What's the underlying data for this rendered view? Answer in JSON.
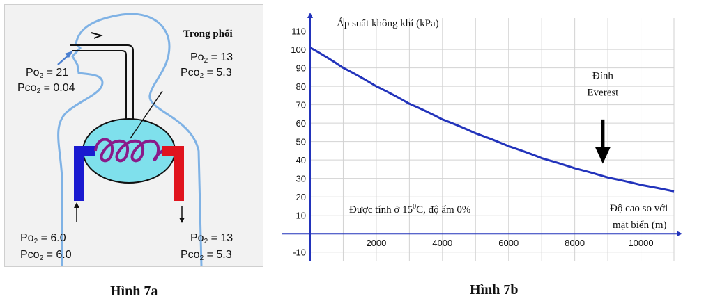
{
  "figure_a": {
    "caption": "Hình 7a",
    "lung_title": "Trong phổi",
    "air": {
      "po2_label": "Po",
      "po2_value": "21",
      "pco2_label": "Pco",
      "pco2_value": "0.04"
    },
    "lung": {
      "po2_label": "Po",
      "po2_value": "13",
      "pco2_label": "Pco",
      "pco2_value": "5.3"
    },
    "venous": {
      "po2_label": "Po",
      "po2_value": "6.0",
      "pco2_label": "Pco",
      "pco2_value": "6.0"
    },
    "arterial": {
      "po2_label": "Po",
      "po2_value": "13",
      "pco2_label": "Pco",
      "pco2_value": "5.3"
    },
    "subscript": "2",
    "colors": {
      "outline": "#7fb2e5",
      "lung": "#7fe0ec",
      "capillary": "#8a1a8a",
      "venous": "#1a1ad0",
      "arterial": "#e0141e"
    }
  },
  "figure_b": {
    "caption": "Hình 7b",
    "annotation_top": "Đỉnh",
    "annotation_bottom": "Everest",
    "note_prefix": "Được tính ở 15",
    "note_sup": "0",
    "note_suffix": "C, độ ẩm 0%",
    "xlabel_line1": "Độ cao so với",
    "xlabel_line2": "mặt biển (m)"
  },
  "chart_data": {
    "type": "line",
    "ylabel": "Áp suất không khí (kPa)",
    "xlabel": "Độ cao so với mặt biển (m)",
    "xlim": [
      0,
      11000
    ],
    "ylim": [
      -15,
      117
    ],
    "x_ticks": [
      2000,
      4000,
      6000,
      8000,
      10000
    ],
    "y_ticks": [
      110,
      100,
      90,
      80,
      70,
      60,
      50,
      40,
      30,
      20,
      10,
      -10
    ],
    "grid": true,
    "series": [
      {
        "x": [
          0,
          1000,
          2000,
          3000,
          4000,
          5000,
          6000,
          7000,
          8000,
          9000,
          10000,
          11000
        ],
        "y": [
          101,
          90,
          80,
          70.5,
          62,
          54.5,
          47.5,
          41,
          35.5,
          30.5,
          26.5,
          23
        ]
      }
    ],
    "annotation_arrow_x": 8848,
    "colors": {
      "line": "#2233bb",
      "axis": "#2233bb",
      "grid": "#d2d2d2"
    }
  }
}
